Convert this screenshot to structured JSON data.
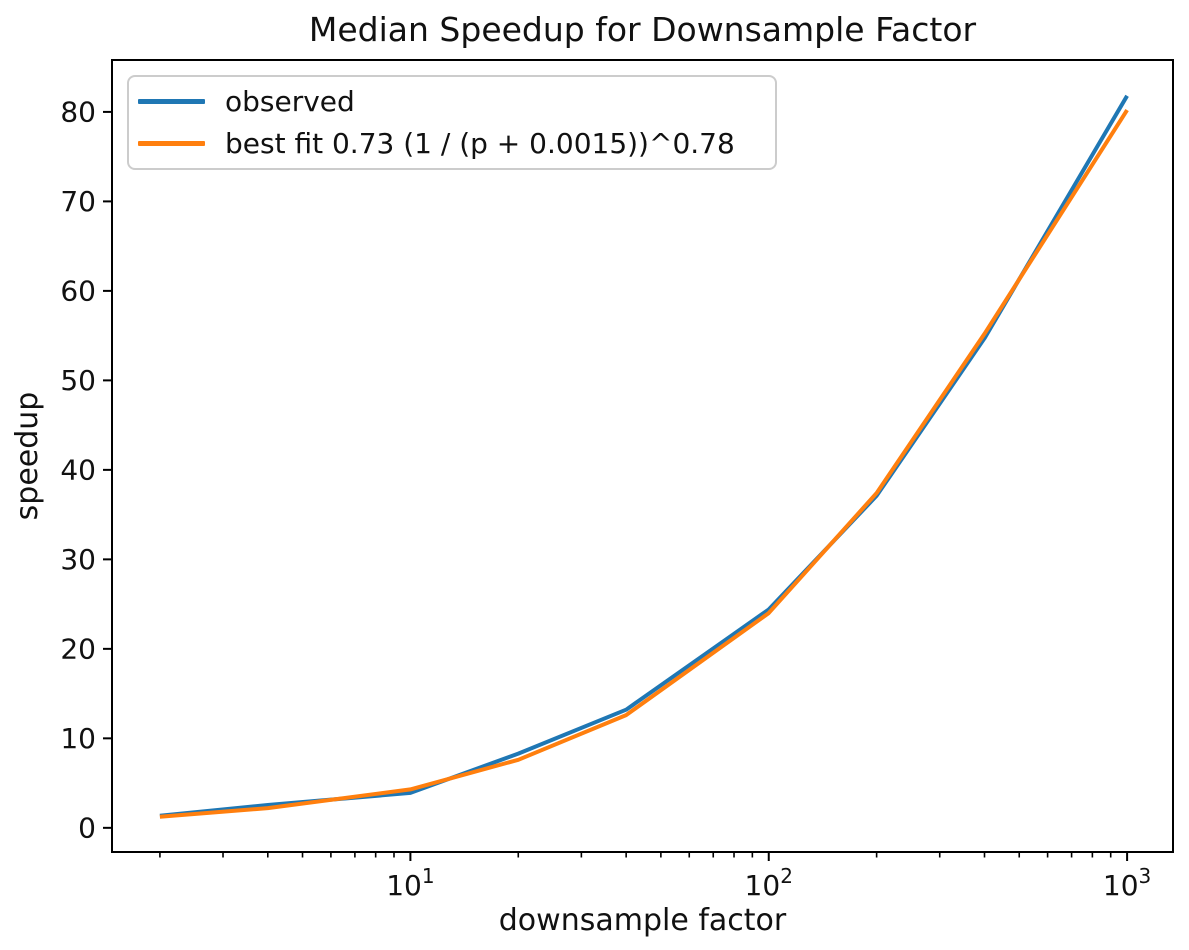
{
  "figure": {
    "title": "Median Speedup for Downsample Factor",
    "xlabel": "downsample factor",
    "ylabel": "speedup"
  },
  "colors": {
    "observed": "#1f77b4",
    "best_fit": "#ff7f0e",
    "axis": "#000000",
    "legend_border": "#cccccc",
    "background": "#ffffff"
  },
  "legend": {
    "position": "upper left",
    "entries": [
      {
        "label": "observed",
        "color": "#1f77b4"
      },
      {
        "label": "best fit 0.73 (1 / (p + 0.0015))^0.78",
        "color": "#ff7f0e"
      }
    ]
  },
  "chart_data": {
    "type": "line",
    "title": "Median Speedup for Downsample Factor",
    "xlabel": "downsample factor",
    "ylabel": "speedup",
    "x_scale": "log",
    "y_scale": "linear",
    "grid": false,
    "legend_position": "upper left",
    "x": [
      2,
      4,
      10,
      20,
      40,
      100,
      200,
      400,
      1000
    ],
    "series": [
      {
        "name": "observed",
        "color": "#1f77b4",
        "values": [
          1.35,
          2.55,
          3.9,
          8.3,
          13.2,
          24.4,
          37.1,
          54.7,
          81.8
        ]
      },
      {
        "name": "best fit 0.73 (1 / (p + 0.0015))^0.78",
        "color": "#ff7f0e",
        "values": [
          1.25,
          2.2,
          4.3,
          7.6,
          12.6,
          24.0,
          37.4,
          55.2,
          80.2
        ]
      }
    ],
    "xlim": [
      1.47,
      1343
    ],
    "ylim": [
      -2.7,
      85.8
    ],
    "y_ticks": [
      0,
      10,
      20,
      30,
      40,
      50,
      60,
      70,
      80
    ],
    "x_major_ticks": [
      {
        "value": 10,
        "base": "10",
        "exponent": "1"
      },
      {
        "value": 100,
        "base": "10",
        "exponent": "2"
      },
      {
        "value": 1000,
        "base": "10",
        "exponent": "3"
      }
    ],
    "x_minor_ticks": [
      2,
      3,
      4,
      5,
      6,
      7,
      8,
      9,
      20,
      30,
      40,
      50,
      60,
      70,
      80,
      90,
      200,
      300,
      400,
      500,
      600,
      700,
      800,
      900
    ]
  }
}
